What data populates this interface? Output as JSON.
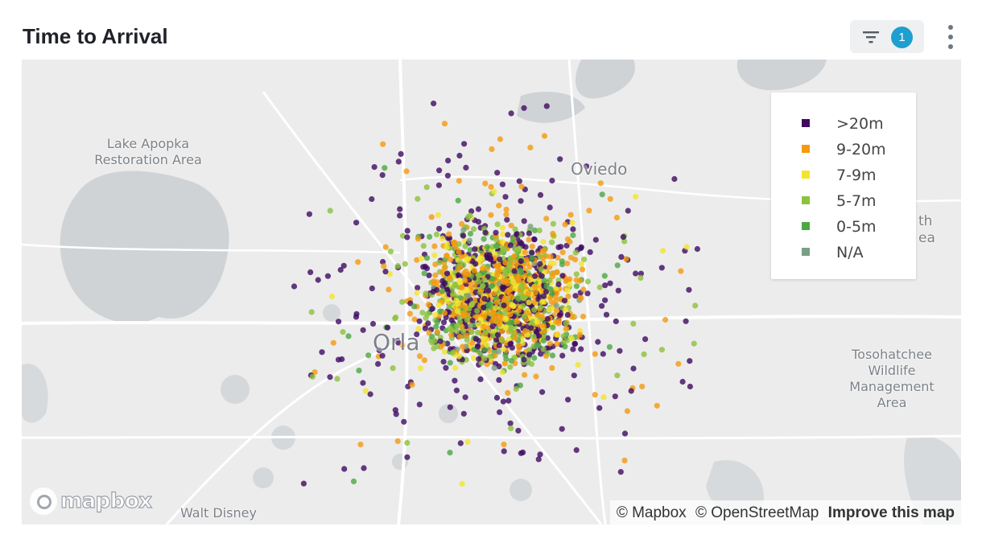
{
  "header": {
    "title": "Time to Arrival",
    "filter_count": "1"
  },
  "map": {
    "places": [
      {
        "label": "Lake Apopka Restoration Area"
      },
      {
        "label": "Oviedo"
      },
      {
        "label": "Orla"
      },
      {
        "label": "Tosohatchee Wildlife Management Area"
      },
      {
        "label": "Walt Disney"
      },
      {
        "label": "th"
      },
      {
        "label": "ea"
      }
    ],
    "legend": [
      {
        "label": ">20m",
        "color": "#3f0a61"
      },
      {
        "label": "9-20m",
        "color": "#f59a0f"
      },
      {
        "label": "7-9m",
        "color": "#f2e52e"
      },
      {
        "label": "5-7m",
        "color": "#8cc23c"
      },
      {
        "label": "0-5m",
        "color": "#4ca843"
      },
      {
        "label": "N/A",
        "color": "#7a9e86"
      }
    ],
    "logo": "mapbox",
    "attribution": {
      "mapbox": "© Mapbox",
      "osm": "© OpenStreetMap",
      "improve": "Improve this map"
    }
  }
}
